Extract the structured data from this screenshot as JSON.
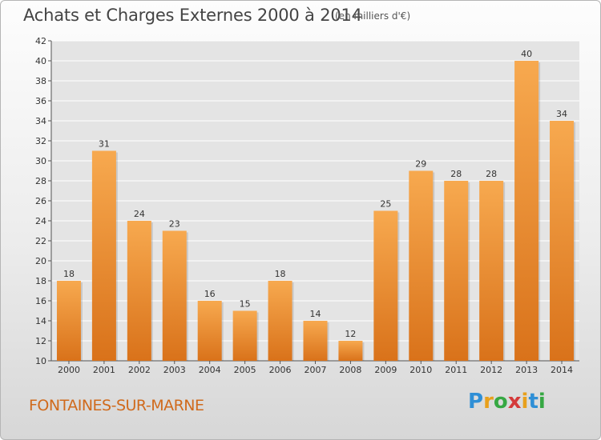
{
  "header": {
    "title": "Achats et Charges Externes 2000 à 2014",
    "unit": "(en milliers d'€)"
  },
  "footer": {
    "city": "FONTAINES-SUR-MARNE",
    "logo_text": "Proxiti"
  },
  "colors": {
    "bar_light": "#f7a94f",
    "bar_dark": "#d9721a",
    "city_text": "#d06a1c",
    "grid": "#ffffff"
  },
  "chart_data": {
    "type": "bar",
    "categories": [
      "2000",
      "2001",
      "2002",
      "2003",
      "2004",
      "2005",
      "2006",
      "2007",
      "2008",
      "2009",
      "2010",
      "2011",
      "2012",
      "2013",
      "2014"
    ],
    "values": [
      18,
      31,
      24,
      23,
      16,
      15,
      18,
      14,
      12,
      25,
      29,
      28,
      28,
      40,
      34
    ],
    "title": "Achats et Charges Externes 2000 à 2014",
    "subtitle": "(en milliers d'€)",
    "ylim": [
      10,
      42
    ],
    "ytick_step": 2,
    "grid": true,
    "legend": "none"
  }
}
